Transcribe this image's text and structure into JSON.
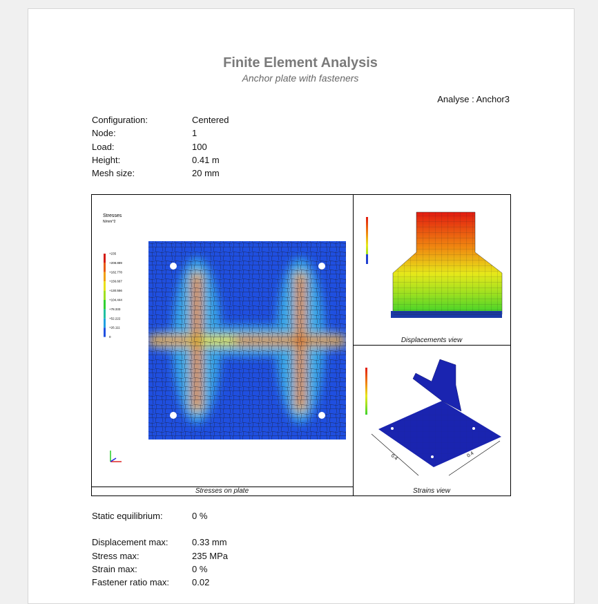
{
  "header": {
    "title": "Finite Element Analysis",
    "subtitle": "Anchor plate with fasteners",
    "analysis": "Analyse : Anchor3"
  },
  "configuration": [
    {
      "label": "Configuration:",
      "value": "Centered"
    },
    {
      "label": "Node:",
      "value": "1"
    },
    {
      "label": "Load:",
      "value": "100"
    },
    {
      "label": "Height:",
      "value": "0.41 m"
    },
    {
      "label": "Mesh size:",
      "value": "20 mm"
    }
  ],
  "figures": {
    "stresses": {
      "caption": "Stresses on plate",
      "legend_title": "Stresses",
      "legend_unit": "N/mm^2",
      "legend_labels": [
        "+235",
        "+208.889",
        "+182.778",
        "+156.667",
        "+130.556",
        "+104.444",
        "+78.333",
        "+52.222",
        "+26.111",
        "0"
      ]
    },
    "displacements": {
      "caption": "Displacements view"
    },
    "strains": {
      "caption": "Strains view",
      "dimensions": [
        "0.4",
        "0.4"
      ]
    }
  },
  "results": {
    "equilibrium": [
      {
        "label": "Static equilibrium:",
        "value": "0 %"
      }
    ],
    "maxima": [
      {
        "label": "Displacement max:",
        "value": "0.33 mm"
      },
      {
        "label": "Stress max:",
        "value": "235 MPa"
      },
      {
        "label": "Strain max:",
        "value": "0 %"
      },
      {
        "label": "Fastener ratio max:",
        "value": "0.02"
      }
    ]
  }
}
